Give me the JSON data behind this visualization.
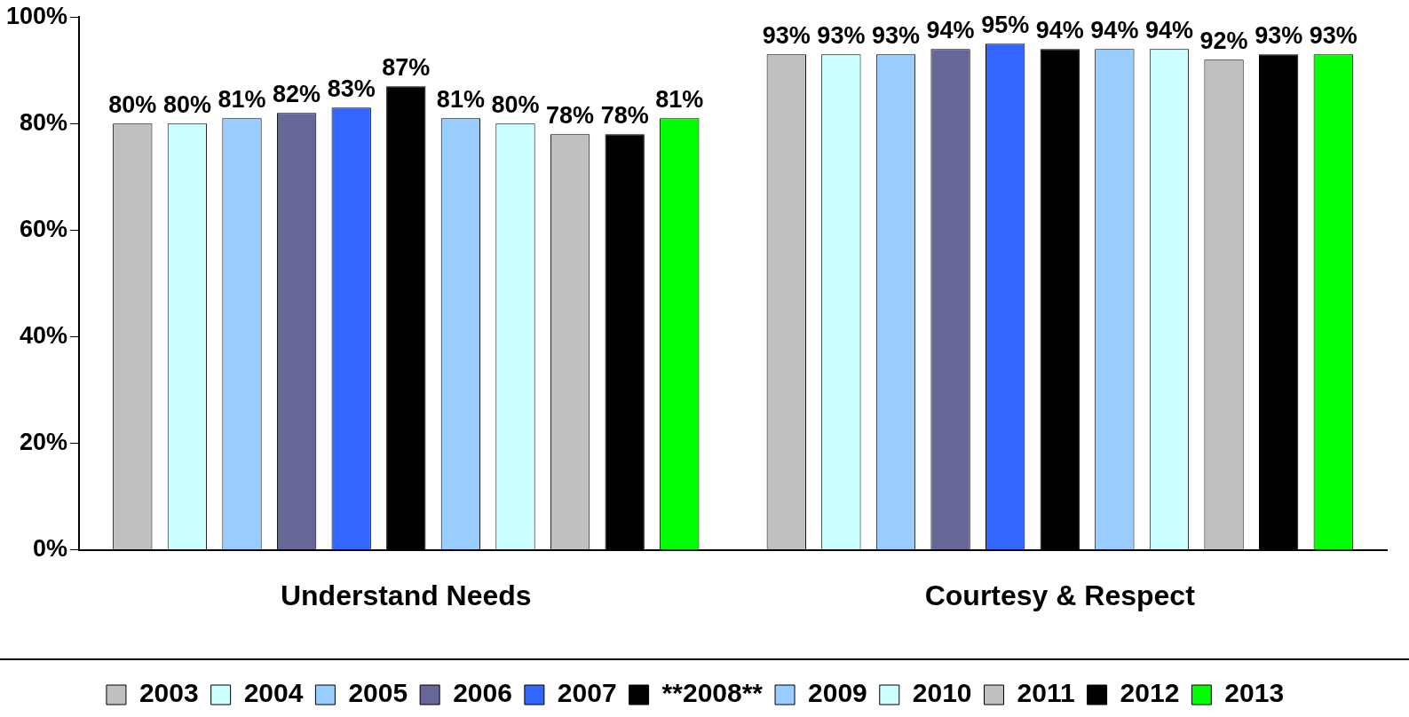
{
  "chart_data": {
    "type": "bar",
    "categories": [
      "Understand Needs",
      "Courtesy & Respect"
    ],
    "series": [
      {
        "name": "2003",
        "color": "#c0c0c0",
        "values": [
          80,
          93
        ],
        "value_labels": [
          "80%",
          "93%"
        ]
      },
      {
        "name": "2004",
        "color": "#ccffff",
        "values": [
          80,
          93
        ],
        "value_labels": [
          "80%",
          "93%"
        ]
      },
      {
        "name": "2005",
        "color": "#99ccff",
        "values": [
          81,
          93
        ],
        "value_labels": [
          "81%",
          "93%"
        ]
      },
      {
        "name": "2006",
        "color": "#666699",
        "values": [
          82,
          94
        ],
        "value_labels": [
          "82%",
          "94%"
        ]
      },
      {
        "name": "2007",
        "color": "#3366ff",
        "values": [
          83,
          95
        ],
        "value_labels": [
          "83%",
          "95%"
        ]
      },
      {
        "name": "**2008**",
        "color": "#000000",
        "values": [
          87,
          94
        ],
        "value_labels": [
          "87%",
          "94%"
        ]
      },
      {
        "name": "2009",
        "color": "#99ccff",
        "values": [
          81,
          94
        ],
        "value_labels": [
          "81%",
          "94%"
        ]
      },
      {
        "name": "2010",
        "color": "#ccffff",
        "values": [
          80,
          94
        ],
        "value_labels": [
          "80%",
          "94%"
        ]
      },
      {
        "name": "2011",
        "color": "#c0c0c0",
        "values": [
          78,
          92
        ],
        "value_labels": [
          "78%",
          "92%"
        ]
      },
      {
        "name": "2012",
        "color": "#000000",
        "values": [
          78,
          93
        ],
        "value_labels": [
          "78%",
          "93%"
        ]
      },
      {
        "name": "2013",
        "color": "#00ff00",
        "values": [
          81,
          93
        ],
        "value_labels": [
          "81%",
          "93%"
        ]
      }
    ],
    "ylim": [
      0,
      100
    ],
    "yticks": [
      {
        "value": 0,
        "label": "0%"
      },
      {
        "value": 20,
        "label": "20%"
      },
      {
        "value": 40,
        "label": "40%"
      },
      {
        "value": 60,
        "label": "60%"
      },
      {
        "value": 80,
        "label": "80%"
      },
      {
        "value": 100,
        "label": "100%"
      }
    ],
    "grid": false,
    "legend": "bottom"
  }
}
